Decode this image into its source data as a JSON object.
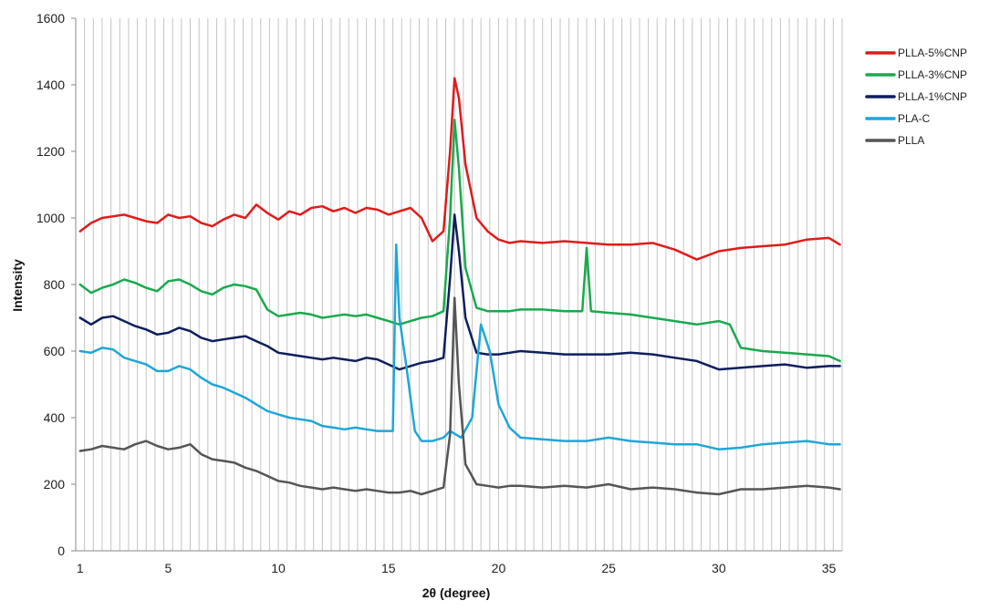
{
  "chart_data": {
    "type": "line",
    "title": "",
    "xlabel": "2θ (degree)",
    "ylabel": "Intensity",
    "xlim": [
      0.8,
      35.6
    ],
    "ylim": [
      0,
      1600
    ],
    "x_ticks": [
      1,
      5,
      10,
      15,
      20,
      25,
      30,
      35
    ],
    "y_ticks": [
      0,
      200,
      400,
      600,
      800,
      1000,
      1200,
      1400,
      1600
    ],
    "grid": "vertical",
    "legend_position": "top-right",
    "series": [
      {
        "name": "PLLA-5%CNP",
        "color": "#e01b1b",
        "x": [
          1,
          1.5,
          2,
          2.5,
          3,
          3.5,
          4,
          4.5,
          5,
          5.5,
          6,
          6.5,
          7,
          7.5,
          8,
          8.5,
          9,
          9.5,
          10,
          10.5,
          11,
          11.5,
          12,
          12.5,
          13,
          13.5,
          14,
          14.5,
          15,
          15.5,
          16,
          16.5,
          17,
          17.5,
          17.8,
          18,
          18.2,
          18.5,
          19,
          19.5,
          20,
          20.5,
          21,
          22,
          23,
          24,
          25,
          26,
          27,
          28,
          29,
          30,
          31,
          32,
          33,
          34,
          35,
          35.5
        ],
        "values": [
          960,
          985,
          1000,
          1005,
          1010,
          1000,
          990,
          985,
          1010,
          1000,
          1005,
          985,
          975,
          995,
          1010,
          1000,
          1040,
          1015,
          995,
          1020,
          1010,
          1030,
          1035,
          1020,
          1030,
          1015,
          1030,
          1025,
          1010,
          1020,
          1030,
          1000,
          930,
          960,
          1200,
          1420,
          1360,
          1160,
          1000,
          960,
          935,
          925,
          930,
          925,
          930,
          925,
          920,
          920,
          925,
          905,
          875,
          900,
          910,
          915,
          920,
          935,
          940,
          920
        ]
      },
      {
        "name": "PLLA-3%CNP",
        "color": "#1aa94e",
        "x": [
          1,
          1.5,
          2,
          2.5,
          3,
          3.5,
          4,
          4.5,
          5,
          5.5,
          6,
          6.5,
          7,
          7.5,
          8,
          8.5,
          9,
          9.5,
          10,
          10.5,
          11,
          11.5,
          12,
          12.5,
          13,
          13.5,
          14,
          14.5,
          15,
          15.5,
          16,
          16.5,
          17,
          17.5,
          17.8,
          18,
          18.2,
          18.5,
          19,
          19.5,
          20,
          20.5,
          21,
          22,
          23,
          23.8,
          24,
          24.2,
          25,
          26,
          27,
          28,
          29,
          30,
          30.5,
          31,
          32,
          33,
          34,
          35,
          35.5
        ],
        "values": [
          800,
          775,
          790,
          800,
          815,
          805,
          790,
          780,
          810,
          815,
          800,
          780,
          770,
          790,
          800,
          795,
          785,
          725,
          705,
          710,
          715,
          710,
          700,
          705,
          710,
          705,
          710,
          700,
          690,
          680,
          690,
          700,
          705,
          720,
          1000,
          1295,
          1150,
          850,
          730,
          720,
          720,
          720,
          725,
          725,
          720,
          720,
          910,
          720,
          715,
          710,
          700,
          690,
          680,
          690,
          680,
          610,
          600,
          595,
          590,
          585,
          570
        ]
      },
      {
        "name": "PLLA-1%CNP",
        "color": "#0d1f5c",
        "x": [
          1,
          1.5,
          2,
          2.5,
          3,
          3.5,
          4,
          4.5,
          5,
          5.5,
          6,
          6.5,
          7,
          7.5,
          8,
          8.5,
          9,
          9.5,
          10,
          10.5,
          11,
          11.5,
          12,
          12.5,
          13,
          13.5,
          14,
          14.5,
          15,
          15.5,
          16,
          16.5,
          17,
          17.5,
          17.8,
          18,
          18.2,
          18.5,
          19,
          19.5,
          20,
          20.5,
          21,
          22,
          23,
          24,
          25,
          26,
          27,
          28,
          29,
          30,
          31,
          32,
          33,
          34,
          35,
          35.5
        ],
        "values": [
          700,
          680,
          700,
          705,
          690,
          675,
          665,
          650,
          655,
          670,
          660,
          640,
          630,
          635,
          640,
          645,
          630,
          615,
          595,
          590,
          585,
          580,
          575,
          580,
          575,
          570,
          580,
          575,
          560,
          545,
          555,
          565,
          570,
          580,
          820,
          1010,
          900,
          700,
          595,
          590,
          590,
          595,
          600,
          595,
          590,
          590,
          590,
          595,
          590,
          580,
          570,
          545,
          550,
          555,
          560,
          550,
          555,
          555
        ]
      },
      {
        "name": "PLA-C",
        "color": "#1ea7d8",
        "x": [
          1,
          1.5,
          2,
          2.5,
          3,
          3.5,
          4,
          4.5,
          5,
          5.5,
          6,
          6.5,
          7,
          7.5,
          8,
          8.5,
          9,
          9.5,
          10,
          10.5,
          11,
          11.5,
          12,
          12.5,
          13,
          13.5,
          14,
          14.5,
          15,
          15.2,
          15.35,
          15.5,
          15.8,
          16.2,
          16.5,
          17,
          17.5,
          17.8,
          18.3,
          18.8,
          19.2,
          19.6,
          20,
          20.5,
          21,
          22,
          23,
          24,
          25,
          26,
          27,
          28,
          29,
          30,
          31,
          32,
          33,
          34,
          35,
          35.5
        ],
        "values": [
          600,
          595,
          610,
          605,
          580,
          570,
          560,
          540,
          540,
          555,
          545,
          520,
          500,
          490,
          475,
          460,
          440,
          420,
          410,
          400,
          395,
          390,
          375,
          370,
          365,
          370,
          365,
          360,
          360,
          360,
          920,
          700,
          560,
          360,
          330,
          330,
          340,
          360,
          340,
          400,
          680,
          600,
          440,
          370,
          340,
          335,
          330,
          330,
          340,
          330,
          325,
          320,
          320,
          305,
          310,
          320,
          325,
          330,
          320,
          320
        ]
      },
      {
        "name": "PLLA",
        "color": "#555555",
        "x": [
          1,
          1.5,
          2,
          2.5,
          3,
          3.5,
          4,
          4.5,
          5,
          5.5,
          6,
          6.5,
          7,
          7.5,
          8,
          8.5,
          9,
          9.5,
          10,
          10.5,
          11,
          11.5,
          12,
          12.5,
          13,
          13.5,
          14,
          14.5,
          15,
          15.5,
          16,
          16.5,
          17,
          17.5,
          17.8,
          18,
          18.2,
          18.5,
          19,
          19.5,
          20,
          20.5,
          21,
          22,
          23,
          24,
          25,
          26,
          27,
          28,
          29,
          30,
          31,
          32,
          33,
          34,
          35,
          35.5
        ],
        "values": [
          300,
          305,
          315,
          310,
          305,
          320,
          330,
          315,
          305,
          310,
          320,
          290,
          275,
          270,
          265,
          250,
          240,
          225,
          210,
          205,
          195,
          190,
          185,
          190,
          185,
          180,
          185,
          180,
          175,
          175,
          180,
          170,
          180,
          190,
          350,
          760,
          500,
          260,
          200,
          195,
          190,
          195,
          195,
          190,
          195,
          190,
          200,
          185,
          190,
          185,
          175,
          170,
          185,
          185,
          190,
          195,
          190,
          185
        ]
      }
    ]
  }
}
